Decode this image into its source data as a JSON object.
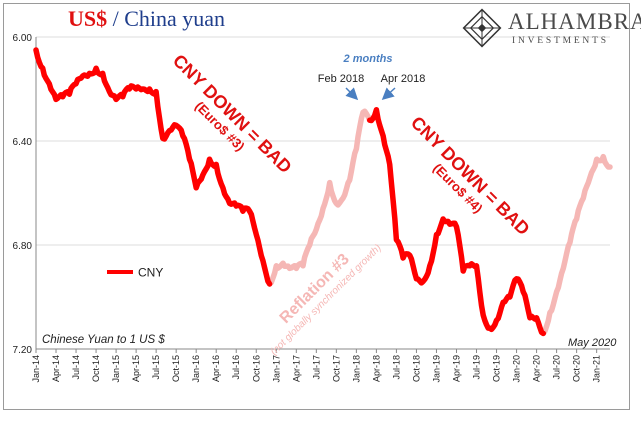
{
  "title": {
    "currency": "US$",
    "rest": " / China yuan"
  },
  "logo": {
    "name": "ALHAMBRA",
    "sub": "INVESTMENTS",
    "icon": "geometric-diamond-icon"
  },
  "chart_data": {
    "type": "line",
    "y_inverted": true,
    "ylim": [
      7.2,
      6.0
    ],
    "yticks": [
      "6.00",
      "6.40",
      "6.80",
      "7.20"
    ],
    "x_start": "2014-01",
    "x_end": "2021-03",
    "xticks": [
      "Jan-14",
      "Apr-14",
      "Jul-14",
      "Oct-14",
      "Jan-15",
      "Apr-15",
      "Jul-15",
      "Oct-15",
      "Jan-16",
      "Apr-16",
      "Jul-16",
      "Oct-16",
      "Jan-17",
      "Apr-17",
      "Jul-17",
      "Oct-17",
      "Jan-18",
      "Apr-18",
      "Jul-18",
      "Oct-18",
      "Jan-19",
      "Apr-19",
      "Jul-19",
      "Oct-19",
      "Jan-20",
      "Apr-20",
      "Jul-20",
      "Oct-20",
      "Jan-21"
    ],
    "grid": true,
    "legend": {
      "label": "CNY",
      "placement": "left-middle"
    },
    "bottom_left_note": "Chinese Yuan to 1 US $",
    "colors": {
      "main": "#ff0000",
      "faded": "#f5b7b5",
      "title_blue": "#1f3e8c",
      "note_blue": "#4a7fc1"
    },
    "series": [
      {
        "name": "CNY",
        "x": [
          "2014-01",
          "2014-02",
          "2014-03",
          "2014-04",
          "2014-05",
          "2014-06",
          "2014-07",
          "2014-08",
          "2014-09",
          "2014-10",
          "2014-11",
          "2014-12",
          "2015-01",
          "2015-02",
          "2015-03",
          "2015-04",
          "2015-05",
          "2015-06",
          "2015-07",
          "2015-08",
          "2015-09",
          "2015-10",
          "2015-11",
          "2015-12",
          "2016-01",
          "2016-02",
          "2016-03",
          "2016-04",
          "2016-05",
          "2016-06",
          "2016-07",
          "2016-08",
          "2016-09",
          "2016-10",
          "2016-11",
          "2016-12",
          "2017-01",
          "2017-02",
          "2017-03",
          "2017-04",
          "2017-05",
          "2017-06",
          "2017-07",
          "2017-08",
          "2017-09",
          "2017-10",
          "2017-11",
          "2017-12",
          "2018-01",
          "2018-02",
          "2018-03",
          "2018-04",
          "2018-05",
          "2018-06",
          "2018-07",
          "2018-08",
          "2018-09",
          "2018-10",
          "2018-11",
          "2018-12",
          "2019-01",
          "2019-02",
          "2019-03",
          "2019-04",
          "2019-05",
          "2019-06",
          "2019-07",
          "2019-08",
          "2019-09",
          "2019-10",
          "2019-11",
          "2019-12",
          "2020-01",
          "2020-02",
          "2020-03",
          "2020-04",
          "2020-05",
          "2020-06",
          "2020-07",
          "2020-08",
          "2020-09",
          "2020-10",
          "2020-11",
          "2020-12",
          "2021-01",
          "2021-02",
          "2021-03"
        ],
        "y": [
          6.05,
          6.12,
          6.18,
          6.24,
          6.23,
          6.22,
          6.18,
          6.15,
          6.14,
          6.12,
          6.14,
          6.21,
          6.24,
          6.23,
          6.2,
          6.2,
          6.2,
          6.2,
          6.21,
          6.39,
          6.36,
          6.34,
          6.38,
          6.47,
          6.58,
          6.53,
          6.47,
          6.49,
          6.58,
          6.64,
          6.65,
          6.67,
          6.67,
          6.76,
          6.86,
          6.95,
          6.88,
          6.87,
          6.89,
          6.89,
          6.88,
          6.8,
          6.74,
          6.66,
          6.56,
          6.64,
          6.62,
          6.55,
          6.43,
          6.29,
          6.32,
          6.28,
          6.38,
          6.49,
          6.78,
          6.85,
          6.84,
          6.93,
          6.94,
          6.88,
          6.76,
          6.7,
          6.72,
          6.73,
          6.9,
          6.88,
          6.88,
          7.07,
          7.12,
          7.09,
          7.02,
          7.0,
          6.93,
          6.98,
          7.08,
          7.08,
          7.14,
          7.06,
          6.98,
          6.89,
          6.79,
          6.7,
          6.62,
          6.54,
          6.47,
          6.46,
          6.5
        ],
        "highlighted_ranges": [
          [
            "2014-01",
            "2016-12"
          ],
          [
            "2018-03",
            "2020-05"
          ]
        ],
        "faded_ranges": [
          [
            "2016-12",
            "2018-03"
          ],
          [
            "2020-05",
            "2021-03"
          ]
        ]
      }
    ],
    "annotations": [
      {
        "text": "CNY DOWN = BAD",
        "sub": "(Euro$ #3)",
        "color": "#e01010"
      },
      {
        "text": "CNY DOWN = BAD",
        "sub": "(Euro$ #4)",
        "color": "#e01010"
      },
      {
        "text": "Reflation #3",
        "sub": "(not globally synchronized growth)",
        "color": "#f5b7b5"
      },
      {
        "text": "2 months",
        "color": "#4a7fc1"
      },
      {
        "text": "Feb 2018",
        "arrow": true
      },
      {
        "text": "Apr 2018",
        "arrow": true
      },
      {
        "text": "May 2020"
      }
    ]
  }
}
